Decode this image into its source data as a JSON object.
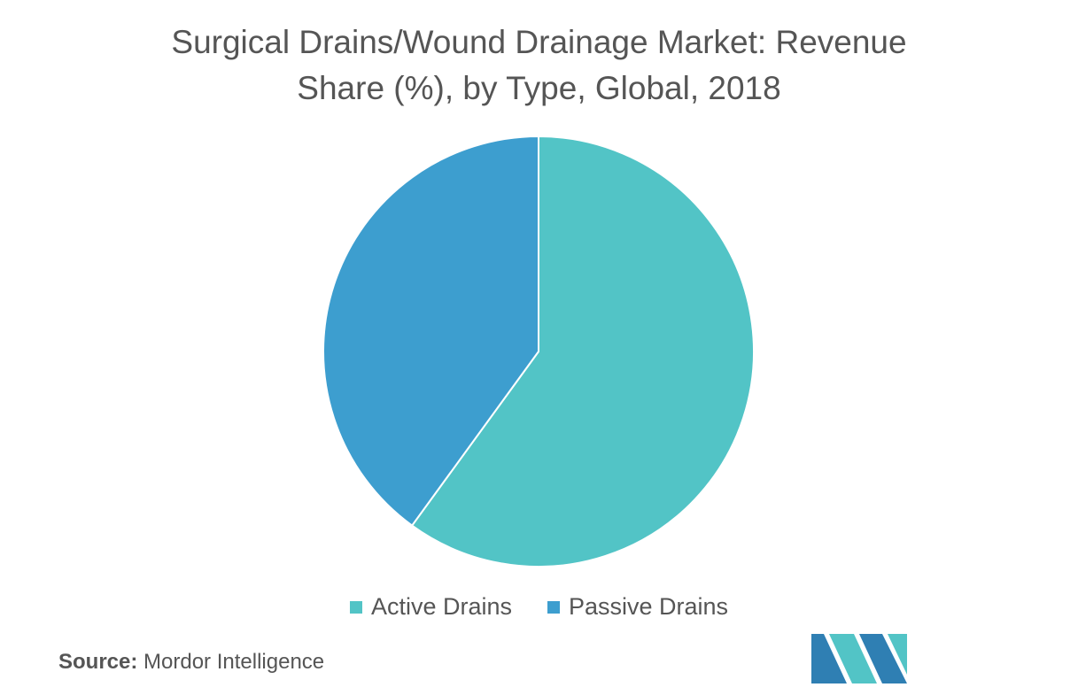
{
  "chart_data": {
    "type": "pie",
    "title_line1": "Surgical Drains/Wound Drainage Market: Revenue",
    "title_line2": "Share (%), by Type, Global, 2018",
    "categories": [
      "Active Drains",
      "Passive Drains"
    ],
    "values": [
      60,
      40
    ],
    "colors": [
      "#52c4c6",
      "#3d9ecf"
    ],
    "legend_position": "bottom-center",
    "start_angle_deg": 0,
    "direction": "clockwise"
  },
  "source": {
    "label": "Source:",
    "text": "Mordor Intelligence"
  },
  "logo": {
    "icon": "mordor-intelligence-logo",
    "colors": [
      "#2f7fb3",
      "#52c4c6"
    ]
  }
}
